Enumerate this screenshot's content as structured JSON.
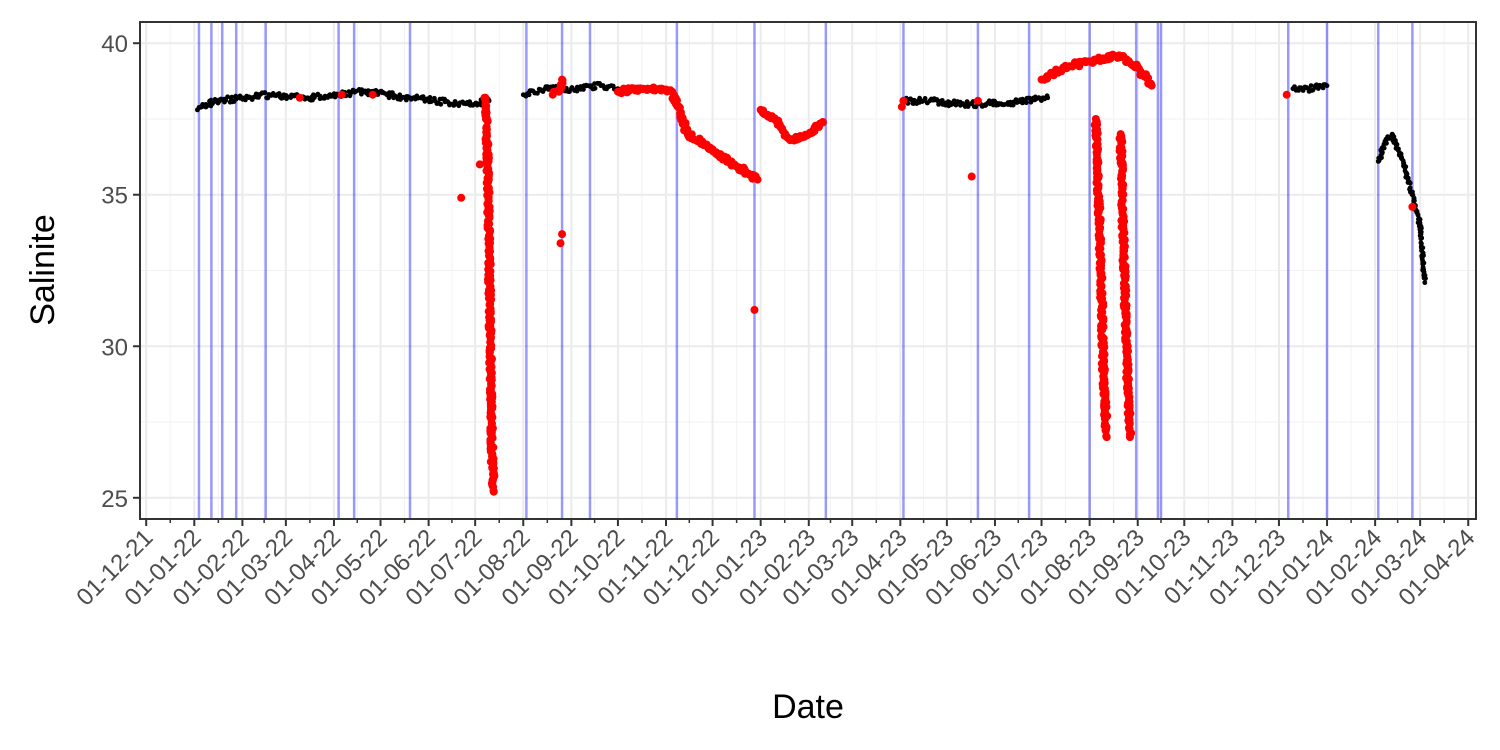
{
  "chart_data": {
    "type": "scatter",
    "title": "",
    "xlabel": "Date",
    "ylabel": "Salinite",
    "x_axis": "date",
    "xlim": [
      "2021-11-27",
      "2024-04-06"
    ],
    "ylim": [
      24.3,
      40.7
    ],
    "grid": true,
    "legend": "none",
    "x_ticks": [
      {
        "date": "2021-12-01",
        "label": "01-12-21"
      },
      {
        "date": "2022-01-01",
        "label": "01-01-22"
      },
      {
        "date": "2022-02-01",
        "label": "01-02-22"
      },
      {
        "date": "2022-03-01",
        "label": "01-03-22"
      },
      {
        "date": "2022-04-01",
        "label": "01-04-22"
      },
      {
        "date": "2022-05-01",
        "label": "01-05-22"
      },
      {
        "date": "2022-06-01",
        "label": "01-06-22"
      },
      {
        "date": "2022-07-01",
        "label": "01-07-22"
      },
      {
        "date": "2022-08-01",
        "label": "01-08-22"
      },
      {
        "date": "2022-09-01",
        "label": "01-09-22"
      },
      {
        "date": "2022-10-01",
        "label": "01-10-22"
      },
      {
        "date": "2022-11-01",
        "label": "01-11-22"
      },
      {
        "date": "2022-12-01",
        "label": "01-12-22"
      },
      {
        "date": "2023-01-01",
        "label": "01-01-23"
      },
      {
        "date": "2023-02-01",
        "label": "01-02-23"
      },
      {
        "date": "2023-03-01",
        "label": "01-03-23"
      },
      {
        "date": "2023-04-01",
        "label": "01-04-23"
      },
      {
        "date": "2023-05-01",
        "label": "01-05-23"
      },
      {
        "date": "2023-06-01",
        "label": "01-06-23"
      },
      {
        "date": "2023-07-01",
        "label": "01-07-23"
      },
      {
        "date": "2023-08-01",
        "label": "01-08-23"
      },
      {
        "date": "2023-09-01",
        "label": "01-09-23"
      },
      {
        "date": "2023-10-01",
        "label": "01-10-23"
      },
      {
        "date": "2023-11-01",
        "label": "01-11-23"
      },
      {
        "date": "2023-12-01",
        "label": "01-12-23"
      },
      {
        "date": "2024-01-01",
        "label": "01-01-24"
      },
      {
        "date": "2024-02-01",
        "label": "01-02-24"
      },
      {
        "date": "2024-03-01",
        "label": "01-03-24"
      },
      {
        "date": "2024-04-01",
        "label": "01-04-24"
      }
    ],
    "y_ticks": [
      {
        "value": 25,
        "label": "25"
      },
      {
        "value": 30,
        "label": "30"
      },
      {
        "value": 35,
        "label": "35"
      },
      {
        "value": 40,
        "label": "40"
      }
    ],
    "vertical_lines": {
      "color": "#0000ff",
      "dates": [
        "2022-01-04",
        "2022-01-12",
        "2022-01-19",
        "2022-01-28",
        "2022-02-16",
        "2022-04-04",
        "2022-04-14",
        "2022-05-20",
        "2022-08-03",
        "2022-08-26",
        "2022-09-13",
        "2022-11-08",
        "2022-12-28",
        "2023-02-12",
        "2023-04-03",
        "2023-05-21",
        "2023-06-23",
        "2023-08-01",
        "2023-08-31",
        "2023-09-14",
        "2023-09-16",
        "2023-12-07",
        "2024-01-01",
        "2024-02-03",
        "2024-02-25"
      ]
    },
    "series": [
      {
        "color": "#000000",
        "segments": [
          {
            "x": [
              "2022-01-03",
              "2022-01-06",
              "2022-01-15",
              "2022-02-01",
              "2022-02-20",
              "2022-03-15",
              "2022-04-05",
              "2022-04-20",
              "2022-05-05",
              "2022-05-20",
              "2022-06-05",
              "2022-06-25",
              "2022-07-10"
            ],
            "y": [
              37.8,
              37.9,
              38.1,
              38.2,
              38.3,
              38.2,
              38.3,
              38.4,
              38.3,
              38.2,
              38.1,
              38.0,
              38.1
            ]
          },
          {
            "x": [
              "2022-08-01",
              "2022-08-15",
              "2022-09-01",
              "2022-09-20",
              "2022-10-01"
            ],
            "y": [
              38.3,
              38.5,
              38.5,
              38.6,
              38.5
            ]
          },
          {
            "x": [
              "2023-04-02",
              "2023-04-20",
              "2023-05-05",
              "2023-05-21",
              "2023-06-05",
              "2023-06-20",
              "2023-07-05"
            ],
            "y": [
              38.1,
              38.1,
              38.0,
              38.0,
              38.0,
              38.1,
              38.2
            ]
          },
          {
            "x": [
              "2023-12-10",
              "2023-12-20",
              "2024-01-01"
            ],
            "y": [
              38.5,
              38.5,
              38.6
            ]
          },
          {
            "x": [
              "2024-02-03",
              "2024-02-08",
              "2024-02-12",
              "2024-02-18",
              "2024-02-25",
              "2024-03-01",
              "2024-03-04"
            ],
            "y": [
              36.1,
              36.8,
              37.0,
              36.2,
              35.0,
              34.0,
              32.1
            ]
          }
        ]
      },
      {
        "color": "#ff0000",
        "segments": [
          {
            "x": [
              "2022-07-07",
              "2022-07-08",
              "2022-07-09",
              "2022-07-10",
              "2022-07-11",
              "2022-07-12",
              "2022-07-13"
            ],
            "y": [
              38.2,
              37.5,
              36.0,
              33.0,
              29.0,
              26.0,
              25.2
            ]
          },
          {
            "x": [
              "2022-08-20",
              "2022-08-24",
              "2022-08-26"
            ],
            "y": [
              38.3,
              38.4,
              38.8
            ]
          },
          {
            "x": [
              "2022-10-01",
              "2022-10-20",
              "2022-11-05",
              "2022-11-15",
              "2022-12-01",
              "2022-12-15",
              "2022-12-30"
            ],
            "y": [
              38.4,
              38.5,
              38.4,
              37.0,
              36.5,
              36.0,
              35.5
            ]
          },
          {
            "x": [
              "2023-01-01",
              "2023-01-10",
              "2023-01-20",
              "2023-02-01",
              "2023-02-10"
            ],
            "y": [
              37.8,
              37.5,
              36.8,
              37.0,
              37.4
            ]
          },
          {
            "x": [
              "2023-07-01",
              "2023-07-15",
              "2023-08-01",
              "2023-08-10",
              "2023-08-20",
              "2023-09-01",
              "2023-09-10"
            ],
            "y": [
              38.8,
              39.2,
              39.4,
              39.5,
              39.6,
              39.2,
              38.6
            ]
          },
          {
            "x": [
              "2023-08-05",
              "2023-08-08",
              "2023-08-10",
              "2023-08-12"
            ],
            "y": [
              37.5,
              33.0,
              29.0,
              27.0
            ]
          },
          {
            "x": [
              "2023-08-21",
              "2023-08-23",
              "2023-08-25",
              "2023-08-27"
            ],
            "y": [
              37.0,
              33.0,
              29.5,
              27.0
            ]
          }
        ],
        "points": [
          {
            "x": "2022-03-10",
            "y": 38.2
          },
          {
            "x": "2022-04-06",
            "y": 38.3
          },
          {
            "x": "2022-04-26",
            "y": 38.3
          },
          {
            "x": "2022-06-22",
            "y": 34.9
          },
          {
            "x": "2022-07-04",
            "y": 36.0
          },
          {
            "x": "2022-08-26",
            "y": 33.7
          },
          {
            "x": "2022-08-25",
            "y": 33.4
          },
          {
            "x": "2022-12-28",
            "y": 31.2
          },
          {
            "x": "2023-04-03",
            "y": 38.1
          },
          {
            "x": "2023-04-02",
            "y": 37.9
          },
          {
            "x": "2023-05-17",
            "y": 35.6
          },
          {
            "x": "2023-05-21",
            "y": 38.1
          },
          {
            "x": "2023-12-06",
            "y": 38.3
          },
          {
            "x": "2024-02-25",
            "y": 34.6
          }
        ]
      }
    ]
  }
}
